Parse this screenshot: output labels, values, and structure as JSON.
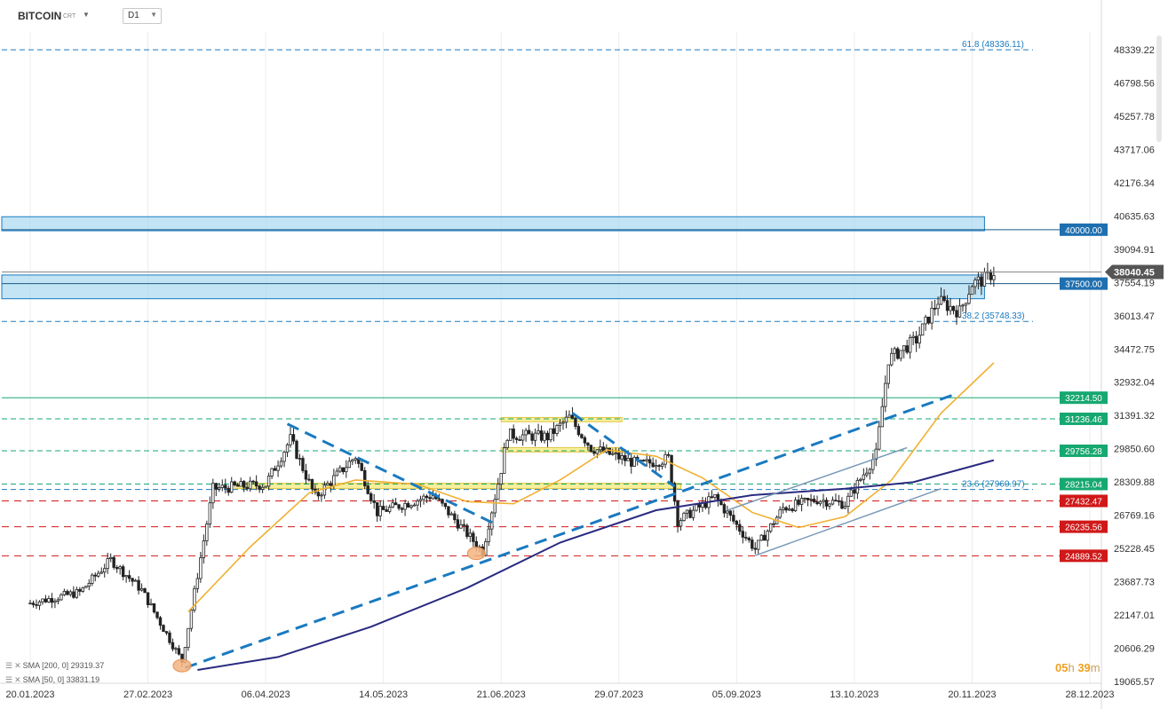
{
  "header": {
    "symbol": "BITCOIN",
    "symbol_sub": "CRT",
    "timeframe": "D1"
  },
  "legend": {
    "sma200": "SMA [200, 0] 29319.37",
    "sma50": "SMA [50, 0] 33831.19"
  },
  "timer": {
    "hours": "05",
    "h": "h",
    "minutes": "39",
    "m": "m"
  },
  "colors": {
    "up_candle": "#ffffff",
    "candle_outline": "#222222",
    "sma50": "#f0b030",
    "sma200": "#2a2a80",
    "trendline": "#1a7ac0",
    "fib_line": "#1a7ac0",
    "zone_fill": "#a8d8f0",
    "resistance_green": "#16a870",
    "support_red": "#d01818",
    "price_tag": "#555555",
    "yellow_box": "#f5e97a"
  },
  "chart_data": {
    "type": "candlestick",
    "instrument": "BITCOIN",
    "timeframe": "D1",
    "y_ticks": [
      48339.22,
      46798.56,
      45257.78,
      43717.06,
      42176.34,
      40635.63,
      39094.91,
      37554.19,
      36013.47,
      34472.75,
      32932.04,
      31391.32,
      29850.6,
      28309.88,
      26769.16,
      25228.45,
      23687.73,
      22147.01,
      20606.29,
      19065.57
    ],
    "y_tick_labels": [
      "48339.22",
      "46798.56",
      "45257.78",
      "43717.06",
      "42176.34",
      "40635.63",
      "39094.91",
      "37554.19",
      "36013.47",
      "34472.75",
      "32932.04",
      "31391.32",
      "29850.60",
      "28309.88",
      "26769.16",
      "25228.45",
      "23687.73",
      "22147.01",
      "20606.29",
      "19065.57"
    ],
    "ylim": [
      19000,
      49500
    ],
    "x_tick_labels": [
      "20.01.2023",
      "27.02.2023",
      "06.04.2023",
      "14.05.2023",
      "21.06.2023",
      "29.07.2023",
      "05.09.2023",
      "13.10.2023",
      "20.11.2023",
      "28.12.2023"
    ],
    "x_ticks": [
      "2023-01-20",
      "2023-02-27",
      "2023-04-06",
      "2023-05-14",
      "2023-06-21",
      "2023-07-29",
      "2023-09-05",
      "2023-10-13",
      "2023-11-20",
      "2023-12-28"
    ],
    "last_price": 38040.45,
    "last_price_label": "38040.45",
    "key_points": [
      {
        "date": "2023-01-20",
        "close": 22700
      },
      {
        "date": "2023-02-05",
        "close": 23200
      },
      {
        "date": "2023-02-15",
        "close": 24700
      },
      {
        "date": "2023-02-25",
        "close": 23300
      },
      {
        "date": "2023-03-10",
        "close": 20000
      },
      {
        "date": "2023-03-20",
        "close": 28000
      },
      {
        "date": "2023-04-06",
        "close": 28200
      },
      {
        "date": "2023-04-14",
        "close": 30300
      },
      {
        "date": "2023-04-22",
        "close": 27600
      },
      {
        "date": "2023-05-05",
        "close": 29500
      },
      {
        "date": "2023-05-12",
        "close": 26900
      },
      {
        "date": "2023-05-30",
        "close": 27700
      },
      {
        "date": "2023-06-15",
        "close": 25100
      },
      {
        "date": "2023-06-21",
        "close": 28900
      },
      {
        "date": "2023-06-23",
        "close": 30500
      },
      {
        "date": "2023-07-06",
        "close": 30400
      },
      {
        "date": "2023-07-13",
        "close": 31300
      },
      {
        "date": "2023-07-20",
        "close": 29900
      },
      {
        "date": "2023-08-05",
        "close": 29100
      },
      {
        "date": "2023-08-14",
        "close": 29400
      },
      {
        "date": "2023-08-17",
        "close": 26500
      },
      {
        "date": "2023-08-29",
        "close": 27600
      },
      {
        "date": "2023-09-11",
        "close": 25200
      },
      {
        "date": "2023-09-20",
        "close": 27100
      },
      {
        "date": "2023-10-01",
        "close": 27500
      },
      {
        "date": "2023-10-10",
        "close": 27300
      },
      {
        "date": "2023-10-20",
        "close": 29600
      },
      {
        "date": "2023-10-24",
        "close": 34000
      },
      {
        "date": "2023-11-02",
        "close": 34900
      },
      {
        "date": "2023-11-09",
        "close": 36700
      },
      {
        "date": "2023-11-16",
        "close": 36200
      },
      {
        "date": "2023-11-20",
        "close": 37500
      },
      {
        "date": "2023-11-24",
        "close": 37700
      },
      {
        "date": "2023-11-27",
        "close": 38040
      }
    ],
    "series": [
      {
        "name": "SMA [50, 0] 33831.19",
        "points": [
          {
            "date": "2023-03-12",
            "value": 22300
          },
          {
            "date": "2023-04-01",
            "value": 25300
          },
          {
            "date": "2023-04-20",
            "value": 27800
          },
          {
            "date": "2023-05-05",
            "value": 28400
          },
          {
            "date": "2023-05-25",
            "value": 28200
          },
          {
            "date": "2023-06-10",
            "value": 27400
          },
          {
            "date": "2023-06-25",
            "value": 27300
          },
          {
            "date": "2023-07-10",
            "value": 28400
          },
          {
            "date": "2023-07-25",
            "value": 29800
          },
          {
            "date": "2023-08-10",
            "value": 29500
          },
          {
            "date": "2023-08-25",
            "value": 28500
          },
          {
            "date": "2023-09-10",
            "value": 26900
          },
          {
            "date": "2023-09-25",
            "value": 26200
          },
          {
            "date": "2023-10-10",
            "value": 26700
          },
          {
            "date": "2023-10-25",
            "value": 28400
          },
          {
            "date": "2023-11-10",
            "value": 31500
          },
          {
            "date": "2023-11-27",
            "value": 33831
          }
        ]
      },
      {
        "name": "SMA [200, 0] 29319.37",
        "points": [
          {
            "date": "2023-03-15",
            "value": 19600
          },
          {
            "date": "2023-04-10",
            "value": 20200
          },
          {
            "date": "2023-05-10",
            "value": 21600
          },
          {
            "date": "2023-06-10",
            "value": 23400
          },
          {
            "date": "2023-07-10",
            "value": 25500
          },
          {
            "date": "2023-08-10",
            "value": 27000
          },
          {
            "date": "2023-09-10",
            "value": 27700
          },
          {
            "date": "2023-10-10",
            "value": 28000
          },
          {
            "date": "2023-11-01",
            "value": 28300
          },
          {
            "date": "2023-11-27",
            "value": 29319
          }
        ]
      }
    ],
    "horizontal_levels": [
      {
        "value": 40000.0,
        "label": "40000.00",
        "kind": "zone-blue"
      },
      {
        "value": 37500.0,
        "label": "37500.00",
        "kind": "zone-blue"
      },
      {
        "value": 32214.5,
        "label": "32214.50",
        "kind": "green"
      },
      {
        "value": 31236.46,
        "label": "31236.46",
        "kind": "green"
      },
      {
        "value": 29756.28,
        "label": "29756.28",
        "kind": "green"
      },
      {
        "value": 28215.04,
        "label": "28215.04",
        "kind": "green"
      },
      {
        "value": 27432.47,
        "label": "27432.47",
        "kind": "red"
      },
      {
        "value": 26235.56,
        "label": "26235.56",
        "kind": "red"
      },
      {
        "value": 24889.52,
        "label": "24889.52",
        "kind": "red"
      }
    ],
    "fibonacci": [
      {
        "value": 48336.11,
        "label": "61.8 (48336.11)"
      },
      {
        "value": 35748.33,
        "label": "38.2 (35748.33)"
      },
      {
        "value": 27960.97,
        "label": "23.6 (27960.97)"
      }
    ],
    "zones": [
      {
        "from": 39950,
        "to": 40600,
        "start": "2023-01-20",
        "end": "2023-11-24"
      },
      {
        "from": 36800,
        "to": 37900,
        "start": "2023-01-20",
        "end": "2023-11-24"
      }
    ],
    "yellow_boxes": [
      {
        "from": 28000,
        "to": 28250,
        "start": "2023-03-27",
        "end": "2023-08-18"
      },
      {
        "from": 31100,
        "to": 31300,
        "start": "2023-06-21",
        "end": "2023-07-30"
      },
      {
        "from": 29700,
        "to": 29900,
        "start": "2023-06-21",
        "end": "2023-07-30"
      }
    ],
    "trendlines": [
      {
        "style": "dashed-thick",
        "from": {
          "date": "2023-03-11",
          "value": 19700
        },
        "to": {
          "date": "2023-11-15",
          "value": 32400
        }
      },
      {
        "style": "dashed-thick",
        "from": {
          "date": "2023-04-13",
          "value": 31000
        },
        "to": {
          "date": "2023-06-20",
          "value": 26300
        }
      },
      {
        "style": "dashed-thick",
        "from": {
          "date": "2023-07-14",
          "value": 31500
        },
        "to": {
          "date": "2023-08-16",
          "value": 28100
        }
      },
      {
        "style": "thin-gray",
        "from": {
          "date": "2023-09-02",
          "value": 27000
        },
        "to": {
          "date": "2023-10-30",
          "value": 29900
        }
      },
      {
        "style": "thin-gray",
        "from": {
          "date": "2023-09-11",
          "value": 24900
        },
        "to": {
          "date": "2023-11-10",
          "value": 28000
        }
      }
    ],
    "highlight_circles": [
      {
        "date": "2023-03-10",
        "value": 19800
      },
      {
        "date": "2023-06-13",
        "value": 25000
      }
    ]
  }
}
